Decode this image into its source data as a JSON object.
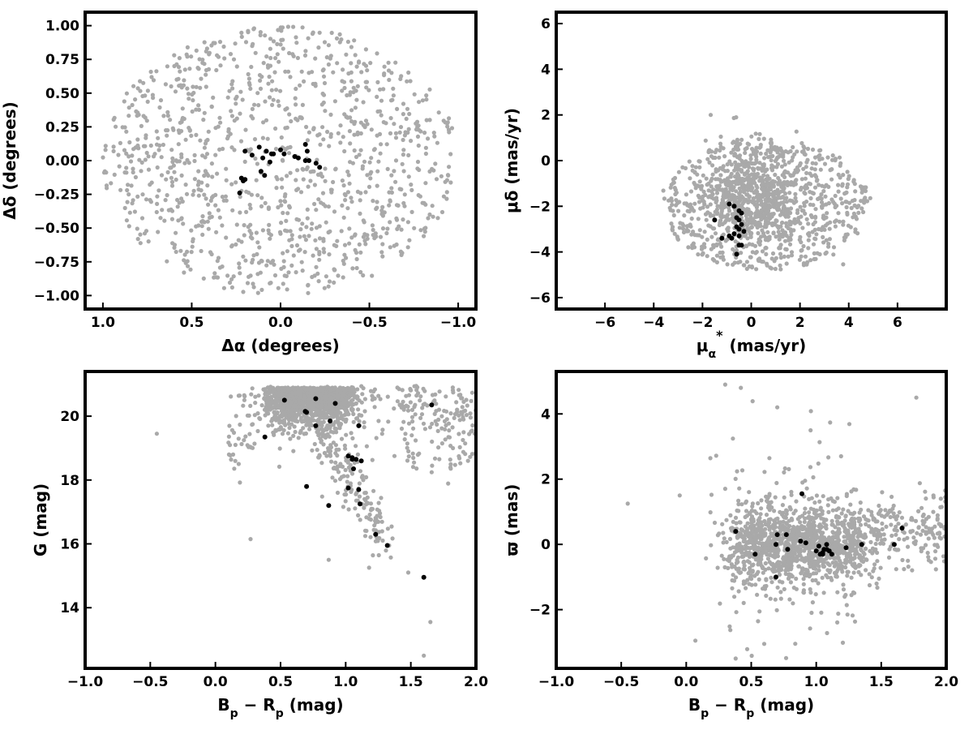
{
  "chart_data": [
    {
      "id": "sky",
      "type": "scatter",
      "xlabel": "Δα (degrees)",
      "ylabel": "Δδ (degrees)",
      "xlim": [
        1.1,
        -1.1
      ],
      "ylim": [
        -1.1,
        1.1
      ],
      "x_reversed": true,
      "xticks": [
        1.0,
        0.5,
        0.0,
        -0.5,
        -1.0
      ],
      "xtick_labels": [
        "1.0",
        "0.5",
        "0.0",
        "−0.5",
        "−1.0"
      ],
      "yticks": [
        -1.0,
        -0.75,
        -0.5,
        -0.25,
        0.0,
        0.25,
        0.5,
        0.75,
        1.0
      ],
      "ytick_labels": [
        "−1.00",
        "−0.75",
        "−0.50",
        "−0.25",
        "0.00",
        "0.25",
        "0.50",
        "0.75",
        "1.00"
      ],
      "background": {
        "shape": "disk",
        "center": [
          0,
          0
        ],
        "radius": 1.0,
        "count": 1100
      },
      "members": {
        "x": [
          0.12,
          0.1,
          0.08,
          0.05,
          0.0,
          -0.02,
          -0.08,
          -0.14,
          -0.16,
          -0.2,
          -0.22,
          0.11,
          0.09,
          0.2,
          0.21,
          0.23,
          0.22,
          0.06,
          0.04,
          -0.1,
          -0.14,
          -0.15,
          0.16,
          0.2
        ],
        "y": [
          0.1,
          0.02,
          0.07,
          0.05,
          0.08,
          0.05,
          0.03,
          0.12,
          0.0,
          -0.02,
          -0.05,
          -0.08,
          -0.11,
          -0.14,
          -0.15,
          -0.24,
          -0.13,
          -0.01,
          0.05,
          0.02,
          0.0,
          0.07,
          0.04,
          0.07
        ]
      },
      "grid": false
    },
    {
      "id": "pm",
      "type": "scatter",
      "xlabel_main": "μ",
      "xlabel_sub": "α",
      "xlabel_sup": "*",
      "xlabel_unit": "(mas/yr)",
      "ylabel": "μδ (mas/yr)",
      "xlim": [
        -8,
        8
      ],
      "ylim": [
        -6.5,
        6.5
      ],
      "xticks": [
        -6,
        -4,
        -2,
        0,
        2,
        4,
        6
      ],
      "xtick_labels": [
        "−6",
        "−4",
        "−2",
        "0",
        "2",
        "4",
        "6"
      ],
      "yticks": [
        -6,
        -4,
        -2,
        0,
        2,
        4,
        6
      ],
      "ytick_labels": [
        "−6",
        "−4",
        "−2",
        "0",
        "2",
        "4",
        "6"
      ],
      "background": {
        "shape": "ellipse",
        "center": [
          0.6,
          -1.9
        ],
        "radius": [
          4.3,
          2.9
        ],
        "clip_y": [
          -5,
          3.7
        ],
        "count": 1300
      },
      "members": {
        "x": [
          -0.9,
          -0.7,
          -0.5,
          -0.4,
          -0.6,
          -0.5,
          -0.4,
          -0.6,
          -0.5,
          -0.3,
          -0.7,
          -0.5,
          -0.8,
          -1.2,
          -0.9,
          -0.5,
          -0.4,
          -0.6,
          -1.5
        ],
        "y": [
          -1.9,
          -2.0,
          -2.2,
          -2.3,
          -2.5,
          -2.6,
          -2.8,
          -2.9,
          -3.0,
          -3.1,
          -3.2,
          -3.3,
          -3.4,
          -3.4,
          -3.3,
          -3.7,
          -3.7,
          -4.1,
          -2.6
        ]
      },
      "grid": false
    },
    {
      "id": "cmd",
      "type": "scatter",
      "xlabel_main": "B",
      "xlabel_sub1": "p",
      "xlabel_mid": " − R",
      "xlabel_sub2": "p",
      "xlabel_unit": " (mag)",
      "ylabel": "G (mag)",
      "xlim": [
        -1.0,
        2.0
      ],
      "ylim": [
        12.1,
        21.4
      ],
      "xticks": [
        -1.0,
        -0.5,
        0.0,
        0.5,
        1.0,
        1.5,
        2.0
      ],
      "xtick_labels": [
        "−1.0",
        "−0.5",
        "0.0",
        "0.5",
        "1.0",
        "1.5",
        "2.0"
      ],
      "yticks": [
        14,
        16,
        18,
        20
      ],
      "ytick_labels": [
        "14",
        "16",
        "18",
        "20"
      ],
      "members": {
        "x": [
          0.38,
          0.53,
          0.69,
          0.77,
          0.88,
          0.92,
          1.1,
          0.7,
          0.77,
          1.02,
          1.05,
          1.06,
          1.08,
          1.12,
          1.1,
          1.02,
          0.7,
          0.87,
          1.11,
          1.23,
          1.32,
          1.6,
          1.66,
          1.05
        ],
        "y": [
          19.35,
          20.5,
          20.15,
          20.55,
          19.85,
          20.4,
          19.7,
          20.12,
          19.7,
          18.75,
          18.65,
          18.35,
          18.65,
          18.6,
          17.7,
          17.75,
          17.8,
          17.2,
          17.25,
          16.3,
          15.95,
          14.95,
          20.35,
          18.7
        ]
      },
      "grid": false
    },
    {
      "id": "plx",
      "type": "scatter",
      "xlabel_main": "B",
      "xlabel_sub1": "p",
      "xlabel_mid": " − R",
      "xlabel_sub2": "p",
      "xlabel_unit": " (mag)",
      "ylabel": "ϖ (mas)",
      "xlim": [
        -1.0,
        2.0
      ],
      "ylim": [
        -3.8,
        5.3
      ],
      "xticks": [
        -1.0,
        -0.5,
        0.0,
        0.5,
        1.0,
        1.5,
        2.0
      ],
      "xtick_labels": [
        "−1.0",
        "−0.5",
        "0.0",
        "0.5",
        "1.0",
        "1.5",
        "2.0"
      ],
      "yticks": [
        -2,
        0,
        2,
        4
      ],
      "ytick_labels": [
        "−2",
        "0",
        "2",
        "4"
      ],
      "members": {
        "x": [
          0.38,
          0.53,
          0.69,
          0.7,
          0.77,
          0.78,
          0.88,
          0.89,
          0.92,
          1.0,
          1.02,
          1.05,
          1.06,
          1.08,
          1.1,
          1.12,
          1.05,
          1.23,
          1.35,
          1.6,
          1.66,
          0.69,
          1.03,
          1.08
        ],
        "y": [
          0.4,
          -0.3,
          0.0,
          0.3,
          0.3,
          -0.15,
          0.1,
          1.55,
          0.05,
          -0.2,
          -0.05,
          -0.3,
          -0.15,
          0.0,
          -0.2,
          -0.3,
          -0.25,
          -0.1,
          0.0,
          0.0,
          0.5,
          -1.0,
          -0.3,
          -0.15
        ]
      },
      "grid": false
    }
  ],
  "colors": {
    "background_points": "#a9a9a9",
    "members": "#000000",
    "axes": "#000000"
  }
}
